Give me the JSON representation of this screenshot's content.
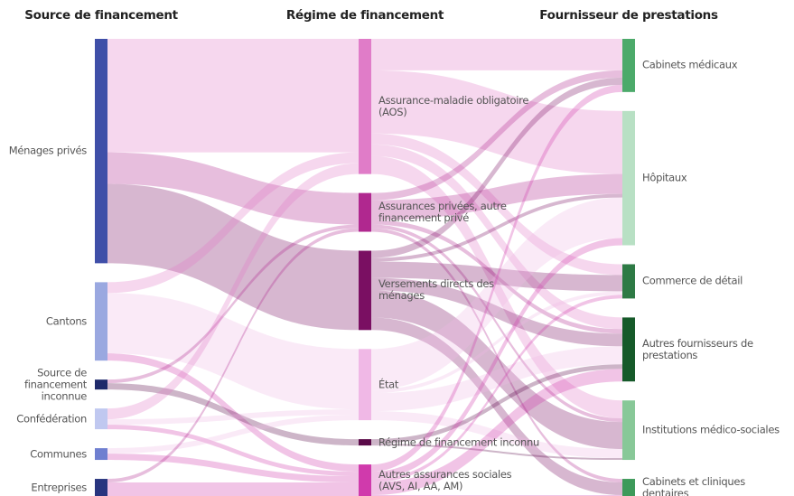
{
  "chart_data": {
    "type": "sankey",
    "columns": [
      {
        "title": "Source de financement",
        "nodes": [
          {
            "name": "Ménages privés",
            "color": "#3f4fa8"
          },
          {
            "name": "Cantons",
            "color": "#9aa8e0"
          },
          {
            "name": "Source de financement inconnue",
            "color": "#1f2a6b"
          },
          {
            "name": "Confédération",
            "color": "#c0c8f0"
          },
          {
            "name": "Communes",
            "color": "#6f7fd0"
          },
          {
            "name": "Entreprises",
            "color": "#28357f"
          }
        ]
      },
      {
        "title": "Régime de financement",
        "nodes": [
          {
            "name": "Assurance-maladie obligatoire (AOS)",
            "color": "#e07cc8"
          },
          {
            "name": "Assurances privées, autre financement privé",
            "color": "#b0288f"
          },
          {
            "name": "Versements directs des ménages",
            "color": "#7a0f62"
          },
          {
            "name": "État",
            "color": "#f0b8e6"
          },
          {
            "name": "Régime de financement inconnu",
            "color": "#5a0a48"
          },
          {
            "name": "Autres assurances sociales (AVS, AI, AA, AM)",
            "color": "#d03aac"
          }
        ]
      },
      {
        "title": "Fournisseur de prestations",
        "nodes": [
          {
            "name": "Cabinets médicaux",
            "color": "#4caa6a"
          },
          {
            "name": "Hôpitaux",
            "color": "#b8e0c4"
          },
          {
            "name": "Commerce de détail",
            "color": "#2e7a45"
          },
          {
            "name": "Autres fournisseurs de prestations",
            "color": "#165a2a"
          },
          {
            "name": "Institutions médico-sociales",
            "color": "#88c898"
          },
          {
            "name": "Cabinets et cliniques dentaires",
            "color": "#3d9a5a"
          }
        ]
      }
    ],
    "links": [
      {
        "source": "Ménages privés",
        "target": "Assurance-maladie obligatoire (AOS)",
        "value": 126
      },
      {
        "source": "Ménages privés",
        "target": "Assurances privées, autre financement privé",
        "value": 35
      },
      {
        "source": "Ménages privés",
        "target": "Versements directs des ménages",
        "value": 88
      },
      {
        "source": "Cantons",
        "target": "Assurance-maladie obligatoire (AOS)",
        "value": 12
      },
      {
        "source": "Cantons",
        "target": "État",
        "value": 67
      },
      {
        "source": "Cantons",
        "target": "Autres assurances sociales (AVS, AI, AA, AM)",
        "value": 8
      },
      {
        "source": "Source de financement inconnue",
        "target": "Assurances privées, autre financement privé",
        "value": 4
      },
      {
        "source": "Source de financement inconnue",
        "target": "Régime de financement inconnu",
        "value": 7
      },
      {
        "source": "Confédération",
        "target": "Assurance-maladie obligatoire (AOS)",
        "value": 12
      },
      {
        "source": "Confédération",
        "target": "État",
        "value": 6
      },
      {
        "source": "Confédération",
        "target": "Autres assurances sociales (AVS, AI, AA, AM)",
        "value": 5
      },
      {
        "source": "Communes",
        "target": "État",
        "value": 6
      },
      {
        "source": "Communes",
        "target": "Autres assurances sociales (AVS, AI, AA, AM)",
        "value": 7
      },
      {
        "source": "Entreprises",
        "target": "Assurances privées, autre financement privé",
        "value": 4
      },
      {
        "source": "Entreprises",
        "target": "Autres assurances sociales (AVS, AI, AA, AM)",
        "value": 15
      },
      {
        "source": "Assurance-maladie obligatoire (AOS)",
        "target": "Cabinets médicaux",
        "value": 35
      },
      {
        "source": "Assurance-maladie obligatoire (AOS)",
        "target": "Hôpitaux",
        "value": 70
      },
      {
        "source": "Assurance-maladie obligatoire (AOS)",
        "target": "Commerce de détail",
        "value": 12
      },
      {
        "source": "Assurance-maladie obligatoire (AOS)",
        "target": "Autres fournisseurs de prestations",
        "value": 13
      },
      {
        "source": "Assurance-maladie obligatoire (AOS)",
        "target": "Institutions médico-sociales",
        "value": 20
      },
      {
        "source": "Assurances privées, autre financement privé",
        "target": "Cabinets médicaux",
        "value": 8
      },
      {
        "source": "Assurances privées, autre financement privé",
        "target": "Hôpitaux",
        "value": 22
      },
      {
        "source": "Assurances privées, autre financement privé",
        "target": "Autres fournisseurs de prestations",
        "value": 5
      },
      {
        "source": "Assurances privées, autre financement privé",
        "target": "Institutions médico-sociales",
        "value": 4
      },
      {
        "source": "Assurances privées, autre financement privé",
        "target": "Cabinets et cliniques dentaires",
        "value": 4
      },
      {
        "source": "Versements directs des ménages",
        "target": "Cabinets médicaux",
        "value": 8
      },
      {
        "source": "Versements directs des ménages",
        "target": "Hôpitaux",
        "value": 4
      },
      {
        "source": "Versements directs des ménages",
        "target": "Commerce de détail",
        "value": 18
      },
      {
        "source": "Versements directs des ménages",
        "target": "Autres fournisseurs de prestations",
        "value": 14
      },
      {
        "source": "Versements directs des ménages",
        "target": "Institutions médico-sociales",
        "value": 30
      },
      {
        "source": "Versements directs des ménages",
        "target": "Cabinets et cliniques dentaires",
        "value": 14
      },
      {
        "source": "État",
        "target": "Hôpitaux",
        "value": 45
      },
      {
        "source": "État",
        "target": "Commerce de détail",
        "value": 4
      },
      {
        "source": "État",
        "target": "Autres fournisseurs de prestations",
        "value": 20
      },
      {
        "source": "État",
        "target": "Institutions médico-sociales",
        "value": 10
      },
      {
        "source": "Régime de financement inconnu",
        "target": "Autres fournisseurs de prestations",
        "value": 5
      },
      {
        "source": "Régime de financement inconnu",
        "target": "Institutions médico-sociales",
        "value": 2
      },
      {
        "source": "Autres assurances sociales (AVS, AI, AA, AM)",
        "target": "Cabinets médicaux",
        "value": 8
      },
      {
        "source": "Autres assurances sociales (AVS, AI, AA, AM)",
        "target": "Hôpitaux",
        "value": 8
      },
      {
        "source": "Autres assurances sociales (AVS, AI, AA, AM)",
        "target": "Commerce de détail",
        "value": 4
      },
      {
        "source": "Autres assurances sociales (AVS, AI, AA, AM)",
        "target": "Autres fournisseurs de prestations",
        "value": 14
      },
      {
        "source": "Autres assurances sociales (AVS, AI, AA, AM)",
        "target": "Cabinets et cliniques dentaires",
        "value": 1
      }
    ]
  }
}
